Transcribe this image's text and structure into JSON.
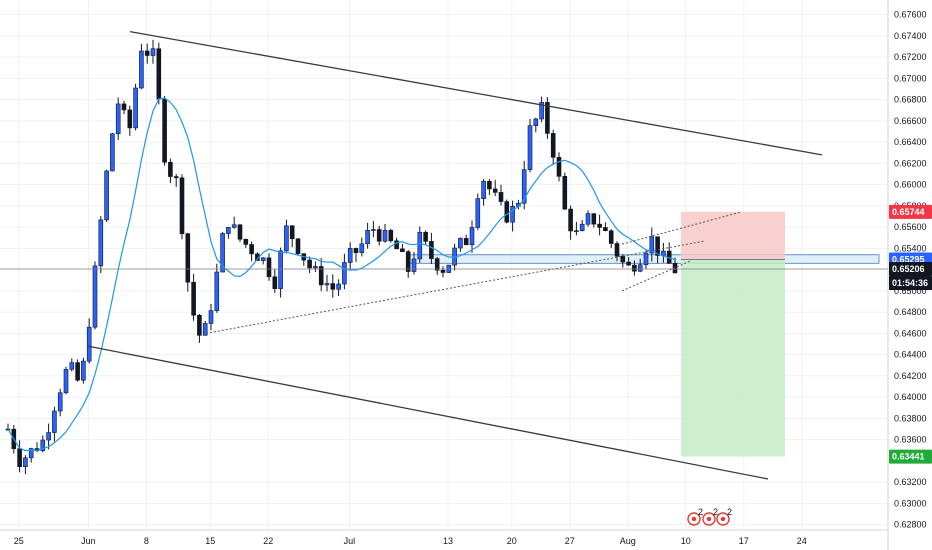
{
  "colors": {
    "background": "#ffffff",
    "grid": "#eef1f5",
    "up_candle": "#2962ff",
    "down_candle": "#131722",
    "ma_line": "#2196f3",
    "channel_line": "#363a45",
    "trendline": "#555555",
    "zone_fill": "#d7ecf8",
    "zone_stroke": "#3a7ab8",
    "stop_fill": "#f8c8c8",
    "target_fill": "#c6ecc4",
    "tag_red": "#f23645",
    "tag_blue": "#2962ff",
    "tag_green": "#22ab3a",
    "tag_dark": "#131722"
  },
  "price_axis": {
    "ticks": [
      "0.67600",
      "0.67400",
      "0.67200",
      "0.67000",
      "0.66800",
      "0.66600",
      "0.66400",
      "0.66200",
      "0.66000",
      "0.65800",
      "0.65600",
      "0.65400",
      "0.65000",
      "0.64800",
      "0.64600",
      "0.64400",
      "0.64200",
      "0.64000",
      "0.63800",
      "0.63600",
      "0.63200",
      "0.63000",
      "0.62800"
    ]
  },
  "time_axis": {
    "ticks": [
      "25",
      "Jun",
      "8",
      "15",
      "22",
      "Jul",
      "13",
      "20",
      "27",
      "Aug",
      "10",
      "17",
      "24"
    ]
  },
  "price_tags": {
    "stop": "0.65744",
    "entry": "0.65295",
    "current": "0.65206",
    "countdown": "01:54:36",
    "target": "0.63441"
  },
  "event_icons": [
    "event-icon-1",
    "event-icon-2",
    "event-icon-3"
  ],
  "event_counts": [
    "2",
    "2",
    "2"
  ],
  "chart_data": {
    "type": "candlestick",
    "instrument_note": "",
    "ylim": [
      0.6275,
      0.677
    ],
    "x_ticks": [
      "25",
      "Jun",
      "8",
      "15",
      "22",
      "Jul",
      "13",
      "20",
      "27",
      "Aug",
      "10",
      "17",
      "24"
    ],
    "y_ticks": [
      0.676,
      0.674,
      0.672,
      0.67,
      0.668,
      0.666,
      0.664,
      0.662,
      0.66,
      0.658,
      0.656,
      0.654,
      0.65,
      0.648,
      0.646,
      0.644,
      0.642,
      0.64,
      0.638,
      0.636,
      0.632,
      0.63,
      0.628
    ],
    "last_price": 0.65206,
    "position": {
      "entry": 0.65295,
      "stop": 0.65744,
      "target": 0.63441,
      "direction": "short"
    },
    "support_zone": {
      "top": 0.6534,
      "bottom": 0.6526
    },
    "channel_upper": [
      [
        1,
        0.6744
      ],
      [
        67,
        0.6628
      ]
    ],
    "channel_lower": [
      [
        5,
        0.6448
      ],
      [
        65,
        0.6323
      ]
    ],
    "price_path": [
      [
        0,
        0.637
      ],
      [
        1,
        0.634
      ],
      [
        2,
        0.635
      ],
      [
        3,
        0.636
      ],
      [
        4,
        0.64
      ],
      [
        5,
        0.643
      ],
      [
        6,
        0.641
      ],
      [
        7,
        0.65
      ],
      [
        8,
        0.66
      ],
      [
        9,
        0.668
      ],
      [
        10,
        0.665
      ],
      [
        11,
        0.673
      ],
      [
        12,
        0.672
      ],
      [
        13,
        0.662
      ],
      [
        14,
        0.66
      ],
      [
        15,
        0.649
      ],
      [
        16,
        0.645
      ],
      [
        17,
        0.65
      ],
      [
        18,
        0.657
      ],
      [
        19,
        0.655
      ],
      [
        20,
        0.654
      ],
      [
        21,
        0.653
      ],
      [
        22,
        0.651
      ],
      [
        23,
        0.656
      ],
      [
        24,
        0.654
      ],
      [
        25,
        0.652
      ],
      [
        26,
        0.651
      ],
      [
        27,
        0.65
      ],
      [
        28,
        0.653
      ],
      [
        29,
        0.654
      ],
      [
        30,
        0.656
      ],
      [
        31,
        0.655
      ],
      [
        32,
        0.654
      ],
      [
        33,
        0.652
      ],
      [
        34,
        0.655
      ],
      [
        35,
        0.653
      ],
      [
        36,
        0.652
      ],
      [
        37,
        0.654
      ],
      [
        38,
        0.655
      ],
      [
        39,
        0.661
      ],
      [
        40,
        0.659
      ],
      [
        41,
        0.657
      ],
      [
        42,
        0.658
      ],
      [
        43,
        0.665
      ],
      [
        44,
        0.667
      ],
      [
        45,
        0.663
      ],
      [
        46,
        0.657
      ],
      [
        47,
        0.655
      ],
      [
        48,
        0.657
      ],
      [
        49,
        0.656
      ],
      [
        50,
        0.654
      ],
      [
        51,
        0.652
      ],
      [
        52,
        0.653
      ],
      [
        53,
        0.655
      ],
      [
        54,
        0.653
      ],
      [
        55,
        0.652
      ]
    ],
    "price_range": {
      "high": 0.6743,
      "low": 0.6322
    }
  }
}
